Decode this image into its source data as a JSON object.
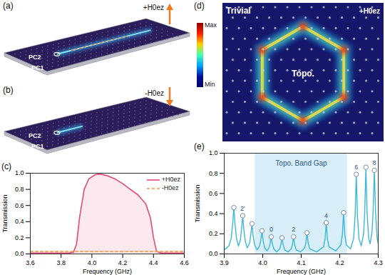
{
  "panels": {
    "a": {
      "title": "(a)",
      "texts": [
        "PC2",
        "PC1"
      ],
      "field": "+H0ez"
    },
    "b": {
      "title": "(b)",
      "texts": [
        "PC2",
        "PC1"
      ],
      "field": "-H0ez"
    },
    "d": {
      "title": "(d)",
      "colorbar": [
        "Max",
        "Min"
      ],
      "regions": [
        "Trivial",
        "Topo."
      ],
      "field": "+H0ez"
    }
  },
  "chart_data": [
    {
      "type": "line",
      "title": "(c)",
      "x_label": "Frequency (GHz)",
      "y_label": "Transmission",
      "xlim": [
        3.6,
        4.6
      ],
      "xticks": [
        3.6,
        3.8,
        {
          "value": 4,
          "label": "4.0"
        },
        4.2,
        4.4,
        4.6
      ],
      "ylim": [
        0,
        1
      ],
      "yticks": [
        {
          "value": 0,
          "label": "0.0"
        },
        0.2,
        0.4,
        0.6,
        0.8,
        {
          "value": 1,
          "label": "1.0"
        }
      ],
      "legend": "upper right",
      "series": [
        {
          "name": "+H0ez",
          "color": "#e4487f",
          "line_style": "solid",
          "x": [
            3.6,
            3.8,
            3.85,
            3.88,
            3.9,
            3.92,
            3.95,
            3.98,
            4.02,
            4.05,
            4.1,
            4.15,
            4.2,
            4.25,
            4.3,
            4.35,
            4.38,
            4.4,
            4.42,
            4.45,
            4.6
          ],
          "values": [
            0.01,
            0.01,
            0.01,
            0.02,
            0.12,
            0.45,
            0.8,
            0.93,
            0.98,
            0.99,
            0.97,
            0.93,
            0.87,
            0.8,
            0.73,
            0.62,
            0.45,
            0.2,
            0.03,
            0.01,
            0.01
          ]
        },
        {
          "name": "-H0ez",
          "color": "#f0a050",
          "line_style": "dashed",
          "x": [
            3.6,
            3.8,
            4.0,
            4.2,
            4.4,
            4.6
          ],
          "values": [
            0.03,
            0.03,
            0.03,
            0.03,
            0.03,
            0.03
          ]
        }
      ]
    },
    {
      "type": "line",
      "title": "(e)",
      "x_label": "Frequency (GHz)",
      "y_label": "Transmission",
      "xlim": [
        3.9,
        4.3
      ],
      "xticks": [
        3.9,
        {
          "value": 4,
          "label": "4.0"
        },
        4.1,
        4.2,
        4.3
      ],
      "ylim": [
        0,
        1
      ],
      "yticks": [
        {
          "value": 0,
          "label": "0.0"
        },
        0.2,
        0.4,
        0.6,
        0.8,
        {
          "value": 1,
          "label": "1.0"
        }
      ],
      "color": "#3db8d8",
      "marker": "circle",
      "x": [
        3.9,
        3.912,
        3.918,
        3.922,
        3.925,
        3.928,
        3.932,
        3.937,
        3.942,
        3.945,
        3.948,
        3.951,
        3.955,
        3.96,
        3.966,
        3.969,
        3.972,
        3.975,
        3.979,
        3.985,
        3.992,
        3.995,
        3.998,
        4.001,
        4.005,
        4.011,
        4.016,
        4.019,
        4.022,
        4.025,
        4.029,
        4.036,
        4.044,
        4.047,
        4.05,
        4.053,
        4.057,
        4.066,
        4.074,
        4.077,
        4.08,
        4.083,
        4.087,
        4.098,
        4.109,
        4.112,
        4.115,
        4.118,
        4.122,
        4.14,
        4.158,
        4.162,
        4.165,
        4.168,
        4.172,
        4.19,
        4.203,
        4.207,
        4.21,
        4.213,
        4.217,
        4.228,
        4.236,
        4.24,
        4.243,
        4.246,
        4.25,
        4.256,
        4.262,
        4.265,
        4.268,
        4.271,
        4.275,
        4.279,
        4.284,
        4.287,
        4.29,
        4.293,
        4.297,
        4.3
      ],
      "values": [
        0.04,
        0.08,
        0.15,
        0.3,
        0.46,
        0.3,
        0.15,
        0.08,
        0.14,
        0.25,
        0.38,
        0.24,
        0.12,
        0.06,
        0.11,
        0.19,
        0.3,
        0.18,
        0.09,
        0.04,
        0.08,
        0.14,
        0.23,
        0.13,
        0.06,
        0.03,
        0.06,
        0.1,
        0.17,
        0.1,
        0.05,
        0.02,
        0.05,
        0.09,
        0.16,
        0.09,
        0.04,
        0.02,
        0.05,
        0.09,
        0.17,
        0.09,
        0.04,
        0.02,
        0.06,
        0.11,
        0.21,
        0.11,
        0.05,
        0.02,
        0.07,
        0.15,
        0.31,
        0.15,
        0.07,
        0.03,
        0.09,
        0.2,
        0.41,
        0.2,
        0.09,
        0.05,
        0.15,
        0.38,
        0.79,
        0.38,
        0.15,
        0.08,
        0.2,
        0.42,
        0.86,
        0.42,
        0.16,
        0.1,
        0.22,
        0.45,
        0.83,
        0.42,
        0.16,
        0.1
      ],
      "peaks": {
        "x": [
          3.925,
          3.948,
          3.972,
          3.998,
          4.022,
          4.05,
          4.08,
          4.115,
          4.165,
          4.21,
          4.243,
          4.268,
          4.29
        ],
        "values": [
          0.46,
          0.38,
          0.3,
          0.23,
          0.17,
          0.16,
          0.17,
          0.21,
          0.31,
          0.41,
          0.79,
          0.86,
          0.83
        ]
      },
      "annotations": [
        {
          "text": "2'",
          "x": 3.948,
          "y": 0.38
        },
        {
          "text": "0",
          "x": 4.022,
          "y": 0.17
        },
        {
          "text": "2",
          "x": 4.08,
          "y": 0.17
        },
        {
          "text": "4",
          "x": 4.165,
          "y": 0.31
        },
        {
          "text": "6",
          "x": 4.243,
          "y": 0.79
        },
        {
          "text": "8",
          "x": 4.29,
          "y": 0.83
        }
      ],
      "band": {
        "text": "Topo. Band Gap",
        "x1": 3.98,
        "x2": 4.22,
        "text_x": 4.1,
        "text_y": 0.9
      }
    }
  ]
}
